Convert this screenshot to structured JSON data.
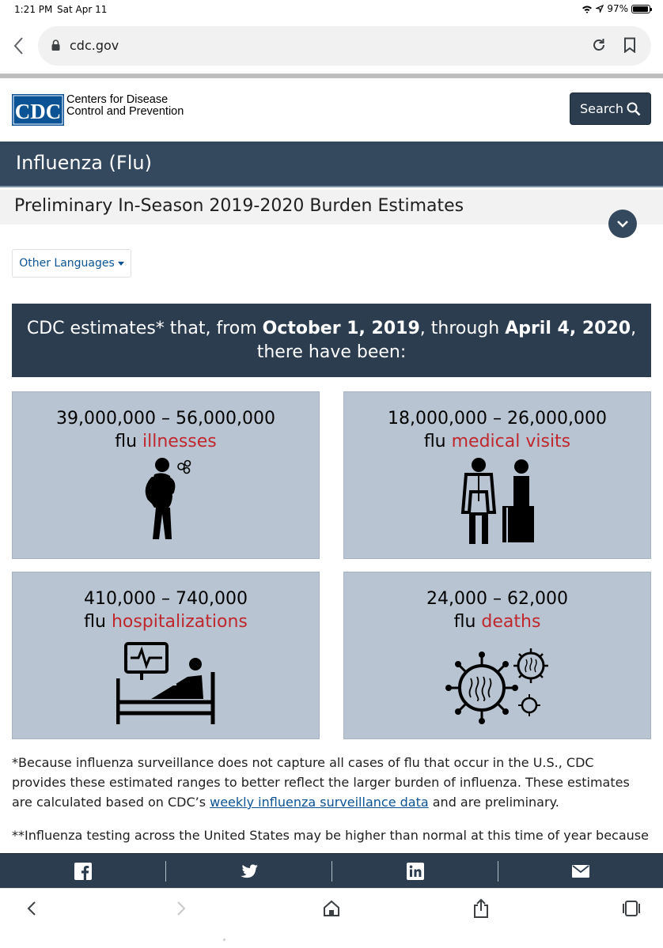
{
  "status_bar": {
    "time": "1:21 PM",
    "date": "Sat Apr 11",
    "battery": "97%",
    "battery_level": 0.97
  },
  "browser": {
    "url": "cdc.gov"
  },
  "site": {
    "logo_text": "CDC",
    "name_line1": "Centers for Disease",
    "name_line2": "Control and Prevention",
    "search_label": "Search"
  },
  "page_title": "Influenza (Flu)",
  "subtitle": "Preliminary In-Season 2019-2020 Burden Estimates",
  "languages_label": "Other Languages",
  "banner": {
    "part1": "CDC estimates* that, from ",
    "date_start": "October 1, 2019",
    "part2": ", through ",
    "date_end": "April 4, 2020",
    "part3": ",",
    "line2": "there have been:"
  },
  "tiles": [
    {
      "range": "39,000,000 – 56,000,000",
      "prefix": "flu ",
      "highlight": "illnesses",
      "icon": "sick-person-icon"
    },
    {
      "range": "18,000,000 – 26,000,000",
      "prefix": "flu ",
      "highlight": "medical visits",
      "icon": "doctor-patient-icon"
    },
    {
      "range": "410,000 – 740,000",
      "prefix": "flu ",
      "highlight": "hospitalizations",
      "icon": "hospital-bed-icon"
    },
    {
      "range": "24,000 – 62,000",
      "prefix": "flu ",
      "highlight": "deaths",
      "icon": "virus-icon"
    }
  ],
  "footnote": {
    "part1": "*Because influenza surveillance does not capture all cases of flu that occur in the U.S., CDC provides these estimated ranges to better reflect the larger burden of influenza. These estimates are calculated based on CDC’s ",
    "link": "weekly influenza surveillance data",
    "part2": " and are preliminary."
  },
  "footnote2": "**Influenza testing across the United States may be higher than normal at this time of year because",
  "share": [
    "facebook-icon",
    "twitter-icon",
    "linkedin-icon",
    "email-icon"
  ],
  "colors": {
    "navy": "#2b3d4f",
    "title_bar": "#34495e",
    "tile_bg": "#b8c4d1",
    "highlight_red": "#c0272d",
    "link_blue": "#0b5394"
  }
}
